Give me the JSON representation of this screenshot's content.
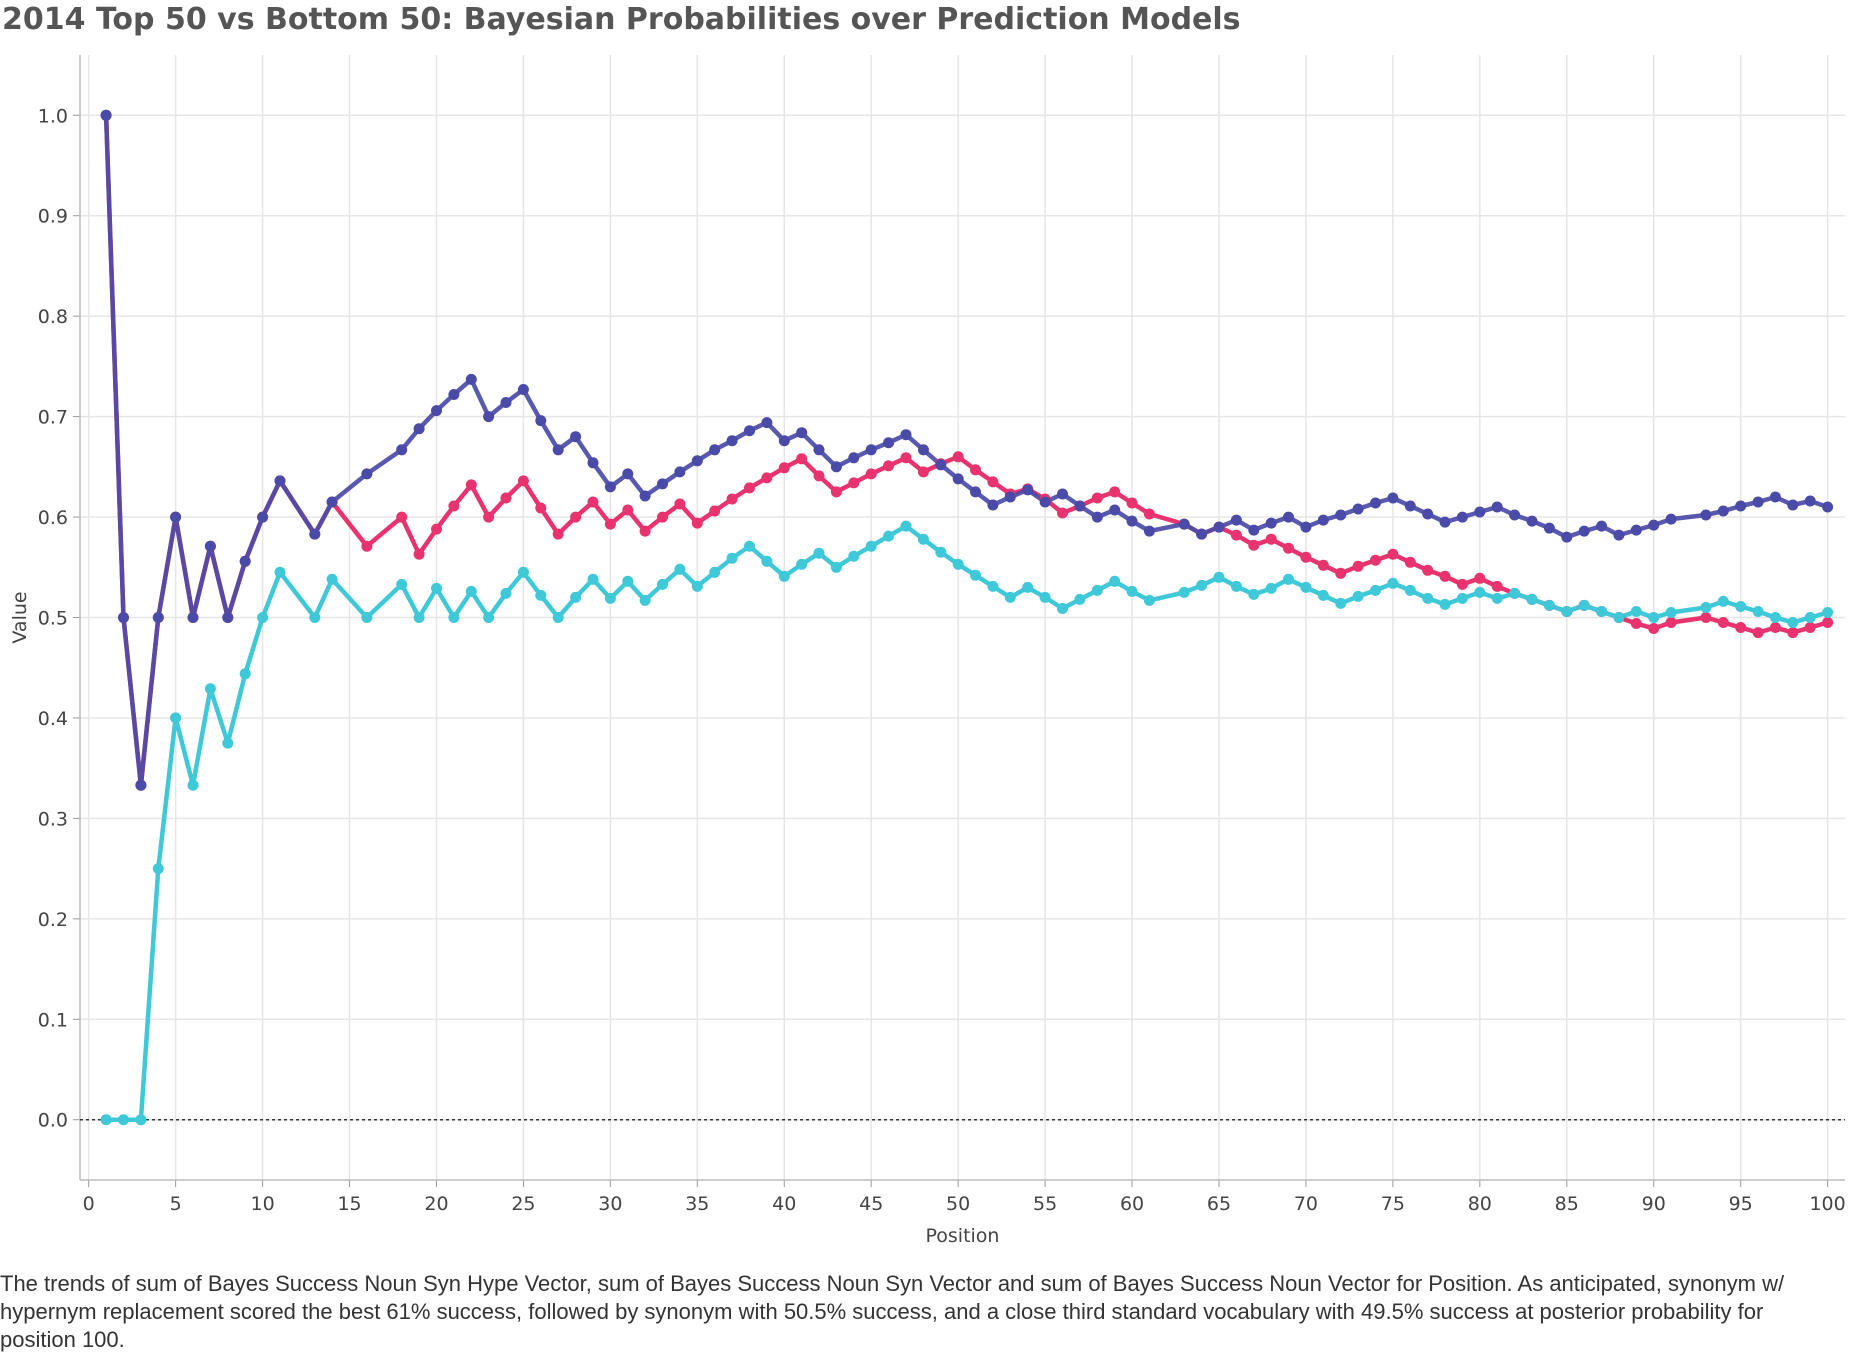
{
  "chart_data": {
    "type": "line",
    "title": "2014 Top 50 vs Bottom 50: Bayesian Probabilities over Prediction Models",
    "xlabel": "Position",
    "ylabel": "Value",
    "xlim": [
      -0.5,
      101
    ],
    "ylim": [
      -0.06,
      1.06
    ],
    "x_ticks": [
      0,
      5,
      10,
      15,
      20,
      25,
      30,
      35,
      40,
      45,
      50,
      55,
      60,
      65,
      70,
      75,
      80,
      85,
      90,
      95,
      100
    ],
    "y_ticks": [
      0.0,
      0.1,
      0.2,
      0.3,
      0.4,
      0.5,
      0.6,
      0.7,
      0.8,
      0.9,
      1.0
    ],
    "grid": true,
    "reference_line": {
      "y": 0.0,
      "style": "dotted"
    },
    "caption": "The trends of sum of Bayes Success Noun Syn Hype Vector, sum of Bayes Success Noun Syn Vector and sum of Bayes Success Noun Vector for Position. As anticipated, synonym w/ hypernym replacement scored the best 61% success, followed by synonym with 50.5% success, and a close third standard vocabulary with 49.5% success at posterior probability for position 100.",
    "series": [
      {
        "color": "#e8336e",
        "points": [
          [
            1,
            1.0
          ],
          [
            2,
            0.5
          ],
          [
            3,
            0.333
          ],
          [
            4,
            0.5
          ],
          [
            5,
            0.6
          ],
          [
            6,
            0.5
          ],
          [
            7,
            0.571
          ],
          [
            8,
            0.5
          ],
          [
            9,
            0.556
          ],
          [
            10,
            0.6
          ],
          [
            11,
            0.636
          ],
          [
            13,
            0.583
          ],
          [
            14,
            0.615
          ],
          [
            16,
            0.571
          ],
          [
            18,
            0.6
          ],
          [
            19,
            0.563
          ],
          [
            20,
            0.588
          ],
          [
            21,
            0.611
          ],
          [
            22,
            0.632
          ],
          [
            23,
            0.6
          ],
          [
            24,
            0.619
          ],
          [
            25,
            0.636
          ],
          [
            26,
            0.609
          ],
          [
            27,
            0.583
          ],
          [
            28,
            0.6
          ],
          [
            29,
            0.615
          ],
          [
            30,
            0.593
          ],
          [
            31,
            0.607
          ],
          [
            32,
            0.586
          ],
          [
            33,
            0.6
          ],
          [
            34,
            0.613
          ],
          [
            35,
            0.594
          ],
          [
            36,
            0.606
          ],
          [
            37,
            0.618
          ],
          [
            38,
            0.629
          ],
          [
            39,
            0.639
          ],
          [
            40,
            0.649
          ],
          [
            41,
            0.658
          ],
          [
            42,
            0.641
          ],
          [
            43,
            0.625
          ],
          [
            44,
            0.634
          ],
          [
            45,
            0.643
          ],
          [
            46,
            0.651
          ],
          [
            47,
            0.659
          ],
          [
            48,
            0.645
          ],
          [
            49,
            0.653
          ],
          [
            50,
            0.66
          ],
          [
            51,
            0.647
          ],
          [
            52,
            0.635
          ],
          [
            53,
            0.623
          ],
          [
            54,
            0.628
          ],
          [
            55,
            0.618
          ],
          [
            56,
            0.604
          ],
          [
            57,
            0.611
          ],
          [
            58,
            0.619
          ],
          [
            59,
            0.625
          ],
          [
            60,
            0.614
          ],
          [
            61,
            0.603
          ],
          [
            63,
            0.593
          ],
          [
            64,
            0.583
          ],
          [
            65,
            0.59
          ],
          [
            66,
            0.582
          ],
          [
            67,
            0.572
          ],
          [
            68,
            0.578
          ],
          [
            69,
            0.569
          ],
          [
            70,
            0.56
          ],
          [
            71,
            0.552
          ],
          [
            72,
            0.544
          ],
          [
            73,
            0.551
          ],
          [
            74,
            0.557
          ],
          [
            75,
            0.563
          ],
          [
            76,
            0.555
          ],
          [
            77,
            0.547
          ],
          [
            78,
            0.541
          ],
          [
            79,
            0.533
          ],
          [
            80,
            0.539
          ],
          [
            81,
            0.531
          ],
          [
            82,
            0.524
          ],
          [
            83,
            0.518
          ],
          [
            84,
            0.512
          ],
          [
            85,
            0.506
          ],
          [
            86,
            0.512
          ],
          [
            87,
            0.506
          ],
          [
            88,
            0.5
          ],
          [
            89,
            0.494
          ],
          [
            90,
            0.489
          ],
          [
            91,
            0.495
          ],
          [
            93,
            0.5
          ],
          [
            94,
            0.495
          ],
          [
            95,
            0.49
          ],
          [
            96,
            0.485
          ],
          [
            97,
            0.49
          ],
          [
            98,
            0.485
          ],
          [
            99,
            0.49
          ],
          [
            100,
            0.495
          ]
        ]
      },
      {
        "color": "#3ec8d8",
        "points": [
          [
            1,
            0.0
          ],
          [
            2,
            0.0
          ],
          [
            3,
            0.0
          ],
          [
            4,
            0.25
          ],
          [
            5,
            0.4
          ],
          [
            6,
            0.333
          ],
          [
            7,
            0.429
          ],
          [
            8,
            0.375
          ],
          [
            9,
            0.444
          ],
          [
            10,
            0.5
          ],
          [
            11,
            0.545
          ],
          [
            13,
            0.5
          ],
          [
            14,
            0.538
          ],
          [
            16,
            0.5
          ],
          [
            18,
            0.533
          ],
          [
            19,
            0.5
          ],
          [
            20,
            0.529
          ],
          [
            21,
            0.5
          ],
          [
            22,
            0.526
          ],
          [
            23,
            0.5
          ],
          [
            24,
            0.524
          ],
          [
            25,
            0.545
          ],
          [
            26,
            0.522
          ],
          [
            27,
            0.5
          ],
          [
            28,
            0.52
          ],
          [
            29,
            0.538
          ],
          [
            30,
            0.519
          ],
          [
            31,
            0.536
          ],
          [
            32,
            0.517
          ],
          [
            33,
            0.533
          ],
          [
            34,
            0.548
          ],
          [
            35,
            0.531
          ],
          [
            36,
            0.545
          ],
          [
            37,
            0.559
          ],
          [
            38,
            0.571
          ],
          [
            39,
            0.556
          ],
          [
            40,
            0.541
          ],
          [
            41,
            0.553
          ],
          [
            42,
            0.564
          ],
          [
            43,
            0.55
          ],
          [
            44,
            0.561
          ],
          [
            45,
            0.571
          ],
          [
            46,
            0.581
          ],
          [
            47,
            0.591
          ],
          [
            48,
            0.578
          ],
          [
            49,
            0.565
          ],
          [
            50,
            0.553
          ],
          [
            51,
            0.542
          ],
          [
            52,
            0.531
          ],
          [
            53,
            0.52
          ],
          [
            54,
            0.53
          ],
          [
            55,
            0.52
          ],
          [
            56,
            0.509
          ],
          [
            57,
            0.518
          ],
          [
            58,
            0.527
          ],
          [
            59,
            0.536
          ],
          [
            60,
            0.526
          ],
          [
            61,
            0.517
          ],
          [
            63,
            0.525
          ],
          [
            64,
            0.532
          ],
          [
            65,
            0.54
          ],
          [
            66,
            0.531
          ],
          [
            67,
            0.523
          ],
          [
            68,
            0.529
          ],
          [
            69,
            0.538
          ],
          [
            70,
            0.53
          ],
          [
            71,
            0.522
          ],
          [
            72,
            0.514
          ],
          [
            73,
            0.521
          ],
          [
            74,
            0.527
          ],
          [
            75,
            0.534
          ],
          [
            76,
            0.527
          ],
          [
            77,
            0.519
          ],
          [
            78,
            0.513
          ],
          [
            79,
            0.519
          ],
          [
            80,
            0.525
          ],
          [
            81,
            0.519
          ],
          [
            82,
            0.524
          ],
          [
            83,
            0.518
          ],
          [
            84,
            0.512
          ],
          [
            85,
            0.506
          ],
          [
            86,
            0.512
          ],
          [
            87,
            0.506
          ],
          [
            88,
            0.5
          ],
          [
            89,
            0.506
          ],
          [
            90,
            0.5
          ],
          [
            91,
            0.505
          ],
          [
            93,
            0.51
          ],
          [
            94,
            0.516
          ],
          [
            95,
            0.511
          ],
          [
            96,
            0.506
          ],
          [
            97,
            0.5
          ],
          [
            98,
            0.495
          ],
          [
            99,
            0.5
          ],
          [
            100,
            0.505
          ]
        ]
      },
      {
        "color": "#4a4ba8",
        "points": [
          [
            1,
            1.0
          ],
          [
            2,
            0.5
          ],
          [
            3,
            0.333
          ],
          [
            4,
            0.5
          ],
          [
            5,
            0.6
          ],
          [
            6,
            0.5
          ],
          [
            7,
            0.571
          ],
          [
            8,
            0.5
          ],
          [
            9,
            0.556
          ],
          [
            10,
            0.6
          ],
          [
            11,
            0.636
          ],
          [
            13,
            0.583
          ],
          [
            14,
            0.615
          ],
          [
            16,
            0.643
          ],
          [
            18,
            0.667
          ],
          [
            19,
            0.688
          ],
          [
            20,
            0.706
          ],
          [
            21,
            0.722
          ],
          [
            22,
            0.737
          ],
          [
            23,
            0.7
          ],
          [
            24,
            0.714
          ],
          [
            25,
            0.727
          ],
          [
            26,
            0.696
          ],
          [
            27,
            0.667
          ],
          [
            28,
            0.68
          ],
          [
            29,
            0.654
          ],
          [
            30,
            0.63
          ],
          [
            31,
            0.643
          ],
          [
            32,
            0.621
          ],
          [
            33,
            0.633
          ],
          [
            34,
            0.645
          ],
          [
            35,
            0.656
          ],
          [
            36,
            0.667
          ],
          [
            37,
            0.676
          ],
          [
            38,
            0.686
          ],
          [
            39,
            0.694
          ],
          [
            40,
            0.676
          ],
          [
            41,
            0.684
          ],
          [
            42,
            0.667
          ],
          [
            43,
            0.65
          ],
          [
            44,
            0.659
          ],
          [
            45,
            0.667
          ],
          [
            46,
            0.674
          ],
          [
            47,
            0.682
          ],
          [
            48,
            0.667
          ],
          [
            49,
            0.652
          ],
          [
            50,
            0.638
          ],
          [
            51,
            0.625
          ],
          [
            52,
            0.612
          ],
          [
            53,
            0.62
          ],
          [
            54,
            0.627
          ],
          [
            55,
            0.615
          ],
          [
            56,
            0.623
          ],
          [
            57,
            0.611
          ],
          [
            58,
            0.6
          ],
          [
            59,
            0.607
          ],
          [
            60,
            0.596
          ],
          [
            61,
            0.586
          ],
          [
            63,
            0.593
          ],
          [
            64,
            0.583
          ],
          [
            65,
            0.59
          ],
          [
            66,
            0.597
          ],
          [
            67,
            0.587
          ],
          [
            68,
            0.594
          ],
          [
            69,
            0.6
          ],
          [
            70,
            0.59
          ],
          [
            71,
            0.597
          ],
          [
            72,
            0.602
          ],
          [
            73,
            0.608
          ],
          [
            74,
            0.614
          ],
          [
            75,
            0.619
          ],
          [
            76,
            0.611
          ],
          [
            77,
            0.603
          ],
          [
            78,
            0.595
          ],
          [
            79,
            0.6
          ],
          [
            80,
            0.605
          ],
          [
            81,
            0.61
          ],
          [
            82,
            0.602
          ],
          [
            83,
            0.596
          ],
          [
            84,
            0.589
          ],
          [
            85,
            0.58
          ],
          [
            86,
            0.586
          ],
          [
            87,
            0.591
          ],
          [
            88,
            0.582
          ],
          [
            89,
            0.587
          ],
          [
            90,
            0.592
          ],
          [
            91,
            0.598
          ],
          [
            93,
            0.602
          ],
          [
            94,
            0.606
          ],
          [
            95,
            0.611
          ],
          [
            96,
            0.615
          ],
          [
            97,
            0.62
          ],
          [
            98,
            0.612
          ],
          [
            99,
            0.616
          ],
          [
            100,
            0.61
          ]
        ]
      }
    ]
  }
}
